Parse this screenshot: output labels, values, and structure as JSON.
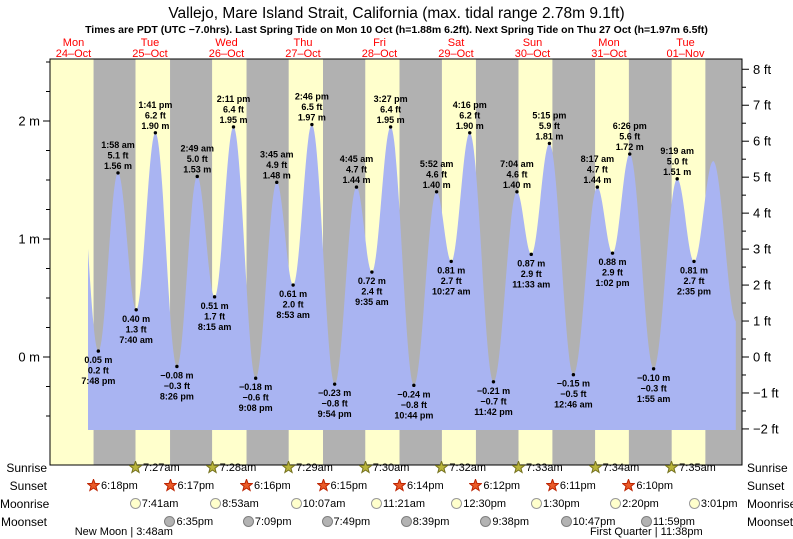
{
  "title": "Vallejo, Mare Island Strait, California (max. tidal range 2.78m 9.1ft)",
  "subtitle": "Times are PDT (UTC −7.0hrs). Last Spring Tide on Mon 10 Oct (h=1.88m 6.2ft). Next Spring Tide on Thu 27 Oct (h=1.97m 6.5ft)",
  "days": [
    {
      "name": "Mon",
      "date": "24–Oct"
    },
    {
      "name": "Tue",
      "date": "25–Oct"
    },
    {
      "name": "Wed",
      "date": "26–Oct"
    },
    {
      "name": "Thu",
      "date": "27–Oct"
    },
    {
      "name": "Fri",
      "date": "28–Oct"
    },
    {
      "name": "Sat",
      "date": "29–Oct"
    },
    {
      "name": "Sun",
      "date": "30–Oct"
    },
    {
      "name": "Mon",
      "date": "31–Oct"
    },
    {
      "name": "Tue",
      "date": "01–Nov"
    }
  ],
  "axes": {
    "left": {
      "unit": "m",
      "major": [
        0,
        1,
        2
      ],
      "minor_step": 0.5,
      "range": [
        -0.9,
        2.5
      ]
    },
    "right": {
      "unit": "ft",
      "major": [
        -2,
        -1,
        0,
        1,
        2,
        3,
        4,
        5,
        6,
        7,
        8
      ],
      "minor_step": 0.5
    }
  },
  "chart_data": {
    "type": "area",
    "title": "Tide height curve, Vallejo, Mare Island Strait, California",
    "x_axis": "days Mon 24-Oct through Tue 01-Nov",
    "y_axis_m_range": [
      -0.9,
      2.5
    ],
    "y_axis_ft_range": [
      -2,
      8
    ],
    "tide_extremes": [
      {
        "day": 0,
        "time": "7:48 pm",
        "m": 0.05,
        "ft": 0.2,
        "type": "low"
      },
      {
        "day": 1,
        "time": "1:58 am",
        "m": 1.56,
        "ft": 5.1,
        "type": "high"
      },
      {
        "day": 1,
        "time": "7:40 am",
        "m": 0.4,
        "ft": 1.3,
        "type": "low"
      },
      {
        "day": 1,
        "time": "1:41 pm",
        "m": 1.9,
        "ft": 6.2,
        "type": "high"
      },
      {
        "day": 1,
        "time": "8:26 pm",
        "m": -0.08,
        "ft": -0.3,
        "type": "low"
      },
      {
        "day": 2,
        "time": "2:49 am",
        "m": 1.53,
        "ft": 5.0,
        "type": "high"
      },
      {
        "day": 2,
        "time": "8:15 am",
        "m": 0.51,
        "ft": 1.7,
        "type": "low"
      },
      {
        "day": 2,
        "time": "2:11 pm",
        "m": 1.95,
        "ft": 6.4,
        "type": "high"
      },
      {
        "day": 2,
        "time": "9:08 pm",
        "m": -0.18,
        "ft": -0.6,
        "type": "low"
      },
      {
        "day": 3,
        "time": "3:45 am",
        "m": 1.48,
        "ft": 4.9,
        "type": "high"
      },
      {
        "day": 3,
        "time": "8:53 am",
        "m": 0.61,
        "ft": 2.0,
        "type": "low"
      },
      {
        "day": 3,
        "time": "2:46 pm",
        "m": 1.97,
        "ft": 6.5,
        "type": "high"
      },
      {
        "day": 3,
        "time": "9:54 pm",
        "m": -0.23,
        "ft": -0.8,
        "type": "low"
      },
      {
        "day": 4,
        "time": "4:45 am",
        "m": 1.44,
        "ft": 4.7,
        "type": "high"
      },
      {
        "day": 4,
        "time": "9:35 am",
        "m": 0.72,
        "ft": 2.4,
        "type": "low"
      },
      {
        "day": 4,
        "time": "3:27 pm",
        "m": 1.95,
        "ft": 6.4,
        "type": "high"
      },
      {
        "day": 4,
        "time": "10:44 pm",
        "m": -0.24,
        "ft": -0.8,
        "type": "low"
      },
      {
        "day": 5,
        "time": "5:52 am",
        "m": 1.4,
        "ft": 4.6,
        "type": "high"
      },
      {
        "day": 5,
        "time": "10:27 am",
        "m": 0.81,
        "ft": 2.7,
        "type": "low"
      },
      {
        "day": 5,
        "time": "4:16 pm",
        "m": 1.9,
        "ft": 6.2,
        "type": "high"
      },
      {
        "day": 5,
        "time": "11:42 pm",
        "m": -0.21,
        "ft": -0.7,
        "type": "low"
      },
      {
        "day": 6,
        "time": "7:04 am",
        "m": 1.4,
        "ft": 4.6,
        "type": "high"
      },
      {
        "day": 6,
        "time": "11:33 am",
        "m": 0.87,
        "ft": 2.9,
        "type": "low"
      },
      {
        "day": 6,
        "time": "5:15 pm",
        "m": 1.81,
        "ft": 5.9,
        "type": "high"
      },
      {
        "day": 7,
        "time": "12:46 am",
        "m": -0.15,
        "ft": -0.5,
        "type": "low"
      },
      {
        "day": 7,
        "time": "8:17 am",
        "m": 1.44,
        "ft": 4.7,
        "type": "high"
      },
      {
        "day": 7,
        "time": "1:02 pm",
        "m": 0.88,
        "ft": 2.9,
        "type": "low"
      },
      {
        "day": 7,
        "time": "6:26 pm",
        "m": 1.72,
        "ft": 5.6,
        "type": "high"
      },
      {
        "day": 8,
        "time": "1:55 am",
        "m": -0.1,
        "ft": -0.3,
        "type": "low"
      },
      {
        "day": 8,
        "time": "9:19 am",
        "m": 1.51,
        "ft": 5.0,
        "type": "high"
      },
      {
        "day": 8,
        "time": "2:35 pm",
        "m": 0.81,
        "ft": 2.7,
        "type": "low"
      }
    ],
    "unlabeled_curve_endpoints": [
      {
        "t_hours": 13.1,
        "m": 1.88
      },
      {
        "t_hours": 212.6,
        "m": 1.66
      },
      {
        "t_hours": 219.9,
        "m": 0.3
      }
    ]
  },
  "sun_moon": {
    "rows": [
      {
        "label": "Sunrise",
        "type": "sunrise",
        "events": [
          {
            "day": 1,
            "time": "7:27am"
          },
          {
            "day": 2,
            "time": "7:28am"
          },
          {
            "day": 3,
            "time": "7:29am"
          },
          {
            "day": 4,
            "time": "7:30am"
          },
          {
            "day": 5,
            "time": "7:32am"
          },
          {
            "day": 6,
            "time": "7:33am"
          },
          {
            "day": 7,
            "time": "7:34am"
          },
          {
            "day": 8,
            "time": "7:35am"
          }
        ]
      },
      {
        "label": "Sunset",
        "type": "sunset",
        "events": [
          {
            "day": 0,
            "time": "6:18pm"
          },
          {
            "day": 1,
            "time": "6:17pm"
          },
          {
            "day": 2,
            "time": "6:16pm"
          },
          {
            "day": 3,
            "time": "6:15pm"
          },
          {
            "day": 4,
            "time": "6:14pm"
          },
          {
            "day": 5,
            "time": "6:12pm"
          },
          {
            "day": 6,
            "time": "6:11pm"
          },
          {
            "day": 7,
            "time": "6:10pm"
          }
        ]
      },
      {
        "label": "Moonrise",
        "type": "moonrise",
        "events": [
          {
            "day": 1,
            "time": "7:41am"
          },
          {
            "day": 2,
            "time": "8:53am"
          },
          {
            "day": 3,
            "time": "10:07am"
          },
          {
            "day": 4,
            "time": "11:21am"
          },
          {
            "day": 5,
            "time": "12:30pm"
          },
          {
            "day": 6,
            "time": "1:30pm"
          },
          {
            "day": 7,
            "time": "2:20pm"
          },
          {
            "day": 8,
            "time": "3:01pm"
          }
        ]
      },
      {
        "label": "Moonset",
        "type": "moonset",
        "events": [
          {
            "day": 1,
            "time": "6:35pm"
          },
          {
            "day": 2,
            "time": "7:09pm"
          },
          {
            "day": 3,
            "time": "7:49pm"
          },
          {
            "day": 4,
            "time": "8:39pm"
          },
          {
            "day": 5,
            "time": "9:38pm"
          },
          {
            "day": 6,
            "time": "10:47pm"
          },
          {
            "day": 7,
            "time": "11:59pm"
          }
        ]
      }
    ],
    "phases": [
      {
        "label": "New Moon",
        "time": "3:48am",
        "day": 1
      },
      {
        "label": "First Quarter",
        "time": "11:38pm",
        "day": 7
      }
    ]
  },
  "colors": {
    "day_band": "#ffffcc",
    "night_band": "#b1b1b1",
    "tide_fill": "#a9b4f2",
    "day_label_red": "#ff0000",
    "sunrise_star_fill": "#b9b53b",
    "sunrise_star_border": "#75721f",
    "sunset_star_fill": "#ea5b28",
    "sunset_star_border": "#bb2200",
    "moonrise_fill": "#ffffcc",
    "moonrise_border": "#999999",
    "moonset_fill": "#b3b3b3",
    "moonset_border": "#7f7f7f"
  }
}
